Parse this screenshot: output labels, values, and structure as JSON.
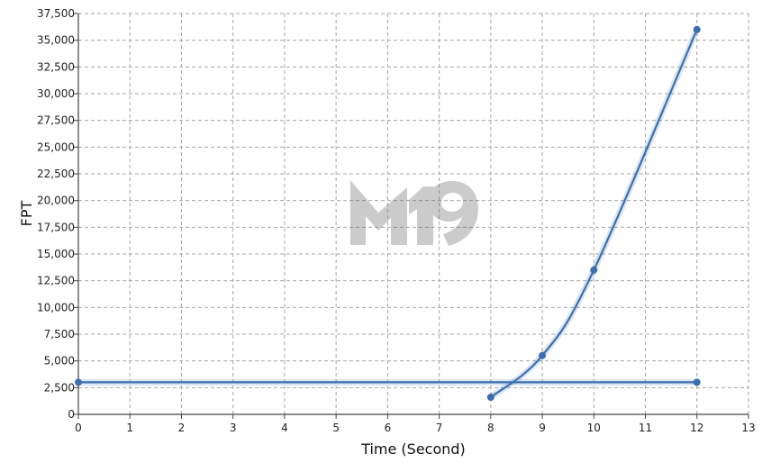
{
  "chart_data": {
    "type": "line",
    "xlabel": "Time (Second)",
    "ylabel": "FPT",
    "xlim": [
      0,
      13
    ],
    "ylim": [
      0,
      37500
    ],
    "x_ticks": [
      "0",
      "1",
      "2",
      "3",
      "4",
      "5",
      "6",
      "7",
      "8",
      "9",
      "10",
      "11",
      "12",
      "13"
    ],
    "x_tick_values": [
      0,
      1,
      2,
      3,
      4,
      5,
      6,
      7,
      8,
      9,
      10,
      11,
      12,
      13
    ],
    "y_ticks": [
      "0",
      "2,500",
      "5,000",
      "7,500",
      "10,000",
      "12,500",
      "15,000",
      "17,500",
      "20,000",
      "22,500",
      "25,000",
      "27,500",
      "30,000",
      "32,500",
      "35,000",
      "37,500"
    ],
    "y_tick_values": [
      0,
      2500,
      5000,
      7500,
      10000,
      12500,
      15000,
      17500,
      20000,
      22500,
      25000,
      27500,
      30000,
      32500,
      35000,
      37500
    ],
    "grid": true,
    "line_color": "#3b6fb0",
    "series": [
      {
        "x": [
          8,
          9,
          10,
          12
        ],
        "y": [
          1600,
          5500,
          13500,
          36000
        ],
        "smooth": true
      },
      {
        "x": [
          0,
          12
        ],
        "y": [
          3000,
          3000
        ],
        "smooth": false
      }
    ],
    "watermark": "M19"
  }
}
